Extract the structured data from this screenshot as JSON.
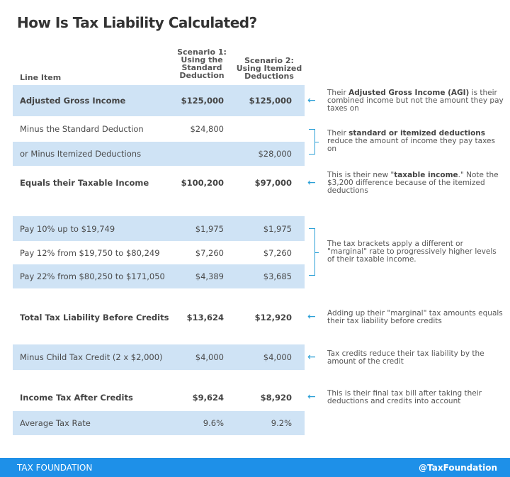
{
  "title": "How Is Tax Liability Calculated?",
  "columns": {
    "line_item": "Line Item",
    "scenario1": [
      "Scenario 1:",
      "Using the",
      "Standard",
      "Deduction"
    ],
    "scenario2": [
      "Scenario 2:",
      "Using Itemized",
      "Deductions"
    ]
  },
  "rows": [
    {
      "label": "Adjusted Gross Income",
      "s1": "$125,000",
      "s2": "$125,000"
    },
    {
      "label": "Minus the Standard Deduction",
      "s1": "$24,800",
      "s2": ""
    },
    {
      "label": "or Minus Itemized Deductions",
      "s1": "",
      "s2": "$28,000"
    },
    {
      "label": "Equals their Taxable Income",
      "s1": "$100,200",
      "s2": "$97,000"
    },
    {
      "label": "Pay 10% up to $19,749",
      "s1": "$1,975",
      "s2": "$1,975"
    },
    {
      "label": "Pay 12% from $19,750 to $80,249",
      "s1": "$7,260",
      "s2": "$7,260"
    },
    {
      "label": "Pay 22% from $80,250 to $171,050",
      "s1": "$4,389",
      "s2": "$3,685"
    },
    {
      "label": "Total Tax Liability Before Credits",
      "s1": "$13,624",
      "s2": "$12,920"
    },
    {
      "label": "Minus Child Tax Credit (2 x $2,000)",
      "s1": "$4,000",
      "s2": "$4,000"
    },
    {
      "label": "Income Tax After Credits",
      "s1": "$9,624",
      "s2": "$8,920"
    },
    {
      "label": "Average Tax Rate",
      "s1": "9.6%",
      "s2": "9.2%"
    }
  ],
  "notes": {
    "agi": {
      "pre": "Their ",
      "bold": "Adjusted Gross Income (AGI)",
      "post": " is their combined income but not the amount they pay taxes on"
    },
    "deductions": {
      "pre": "Their ",
      "bold": "standard or itemized deductions",
      "post": " reduce the amount of income they pay taxes on"
    },
    "taxable": {
      "pre": "This is their new \"",
      "bold": "taxable income",
      "post": ".\" Note the $3,200 difference because of the itemized deductions"
    },
    "brackets": "The tax brackets apply a different or \"marginal\" rate to progressively higher levels of their taxable income.",
    "total": "Adding up their \"marginal\" tax amounts equals their tax liability before credits",
    "credits": "Tax credits reduce their tax liability by the amount of the credit",
    "final": "This is their final tax bill after taking their deductions and credits into account"
  },
  "footer": {
    "brand": "TAX FOUNDATION",
    "handle": "@TaxFoundation"
  },
  "colors": {
    "highlight": "#cfe3f5",
    "accent": "#2a9fd6",
    "footer": "#1e90e8"
  }
}
